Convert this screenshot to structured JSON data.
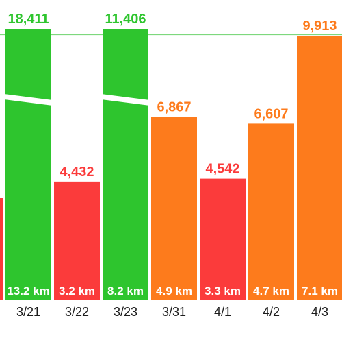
{
  "chart_data": {
    "type": "bar",
    "categories": [
      "3/21",
      "3/22",
      "3/23",
      "3/31",
      "4/1",
      "4/2",
      "4/3"
    ],
    "values": [
      18411,
      4432,
      11406,
      6867,
      4542,
      6607,
      9913
    ],
    "value_labels": [
      "18,411",
      "4,432",
      "11,406",
      "6,867",
      "4,542",
      "6,607",
      "9,913"
    ],
    "distances": [
      "13.2 km",
      "3.2 km",
      "8.2 km",
      "4.9 km",
      "3.3 km",
      "4.7 km",
      "7.1 km"
    ],
    "colors": [
      "#2ec52e",
      "#fb3b3b",
      "#2ec52e",
      "#fd7b1c",
      "#fb3b3b",
      "#fd7b1c",
      "#fd7b1c"
    ],
    "axis_break": [
      true,
      false,
      true,
      false,
      false,
      false,
      false
    ],
    "partial_left_bar_color": "#fb3b3b",
    "goal_line_color": "#7ed87e",
    "ylim": [
      0,
      9913
    ],
    "grid": false,
    "legend": "none"
  }
}
